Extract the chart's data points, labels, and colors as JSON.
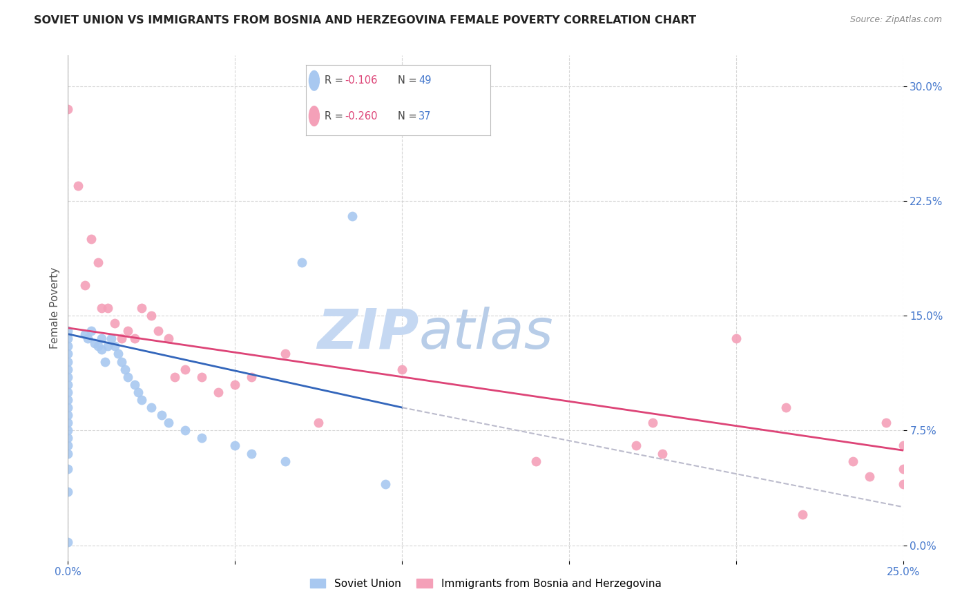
{
  "title": "SOVIET UNION VS IMMIGRANTS FROM BOSNIA AND HERZEGOVINA FEMALE POVERTY CORRELATION CHART",
  "source": "Source: ZipAtlas.com",
  "ylabel": "Female Poverty",
  "ytick_values": [
    0.0,
    7.5,
    15.0,
    22.5,
    30.0
  ],
  "xrange": [
    0.0,
    25.0
  ],
  "yrange": [
    -1.0,
    32.0
  ],
  "blue_color": "#A8C8F0",
  "pink_color": "#F4A0B8",
  "trendline_blue": "#3366BB",
  "trendline_pink": "#DD4477",
  "trendline_dashed_color": "#BBBBCC",
  "watermark_zip_color": "#C8D8F0",
  "watermark_atlas_color": "#B0C8E8",
  "grid_color": "#CCCCCC",
  "axis_label_color": "#4477CC",
  "title_color": "#222222",
  "legend_r_color": "#DD4477",
  "legend_n_color": "#4477CC",
  "soviet_x": [
    0.0,
    0.0,
    0.0,
    0.0,
    0.0,
    0.0,
    0.0,
    0.0,
    0.0,
    0.0,
    0.0,
    0.0,
    0.0,
    0.0,
    0.0,
    0.0,
    0.0,
    0.0,
    0.0,
    0.0,
    0.5,
    0.6,
    0.7,
    0.8,
    0.9,
    1.0,
    1.0,
    1.1,
    1.2,
    1.3,
    1.4,
    1.5,
    1.6,
    1.7,
    1.8,
    2.0,
    2.1,
    2.2,
    2.5,
    2.8,
    3.0,
    3.5,
    4.0,
    5.0,
    5.5,
    6.5,
    7.0,
    8.5,
    9.5
  ],
  "soviet_y": [
    0.2,
    3.5,
    5.0,
    6.0,
    6.5,
    7.0,
    7.5,
    8.0,
    8.5,
    9.0,
    9.5,
    10.0,
    10.5,
    11.0,
    11.5,
    12.0,
    12.5,
    13.0,
    13.5,
    14.0,
    13.8,
    13.5,
    14.0,
    13.2,
    13.0,
    13.5,
    12.8,
    12.0,
    13.0,
    13.5,
    13.0,
    12.5,
    12.0,
    11.5,
    11.0,
    10.5,
    10.0,
    9.5,
    9.0,
    8.5,
    8.0,
    7.5,
    7.0,
    6.5,
    6.0,
    5.5,
    18.5,
    21.5,
    4.0
  ],
  "bosnia_x": [
    0.0,
    0.3,
    0.5,
    0.7,
    0.9,
    1.0,
    1.2,
    1.4,
    1.6,
    1.8,
    2.0,
    2.2,
    2.5,
    2.7,
    3.0,
    3.2,
    3.5,
    4.0,
    4.5,
    5.0,
    5.5,
    6.5,
    7.5,
    10.0,
    14.0,
    17.5,
    20.0,
    21.5,
    23.5,
    24.0,
    24.5,
    25.0,
    25.0,
    25.0,
    17.0,
    17.8,
    22.0
  ],
  "bosnia_y": [
    28.5,
    23.5,
    17.0,
    20.0,
    18.5,
    15.5,
    15.5,
    14.5,
    13.5,
    14.0,
    13.5,
    15.5,
    15.0,
    14.0,
    13.5,
    11.0,
    11.5,
    11.0,
    10.0,
    10.5,
    11.0,
    12.5,
    8.0,
    11.5,
    5.5,
    8.0,
    13.5,
    9.0,
    5.5,
    4.5,
    8.0,
    6.5,
    5.0,
    4.0,
    6.5,
    6.0,
    2.0
  ],
  "trend_blue_x0": 0.0,
  "trend_blue_x1": 10.0,
  "trend_blue_y0": 13.8,
  "trend_blue_y1": 9.0,
  "trend_blue_dash_x0": 10.0,
  "trend_blue_dash_x1": 25.0,
  "trend_blue_dash_y0": 9.0,
  "trend_blue_dash_y1": 2.5,
  "trend_pink_x0": 0.0,
  "trend_pink_x1": 25.0,
  "trend_pink_y0": 14.2,
  "trend_pink_y1": 6.2
}
